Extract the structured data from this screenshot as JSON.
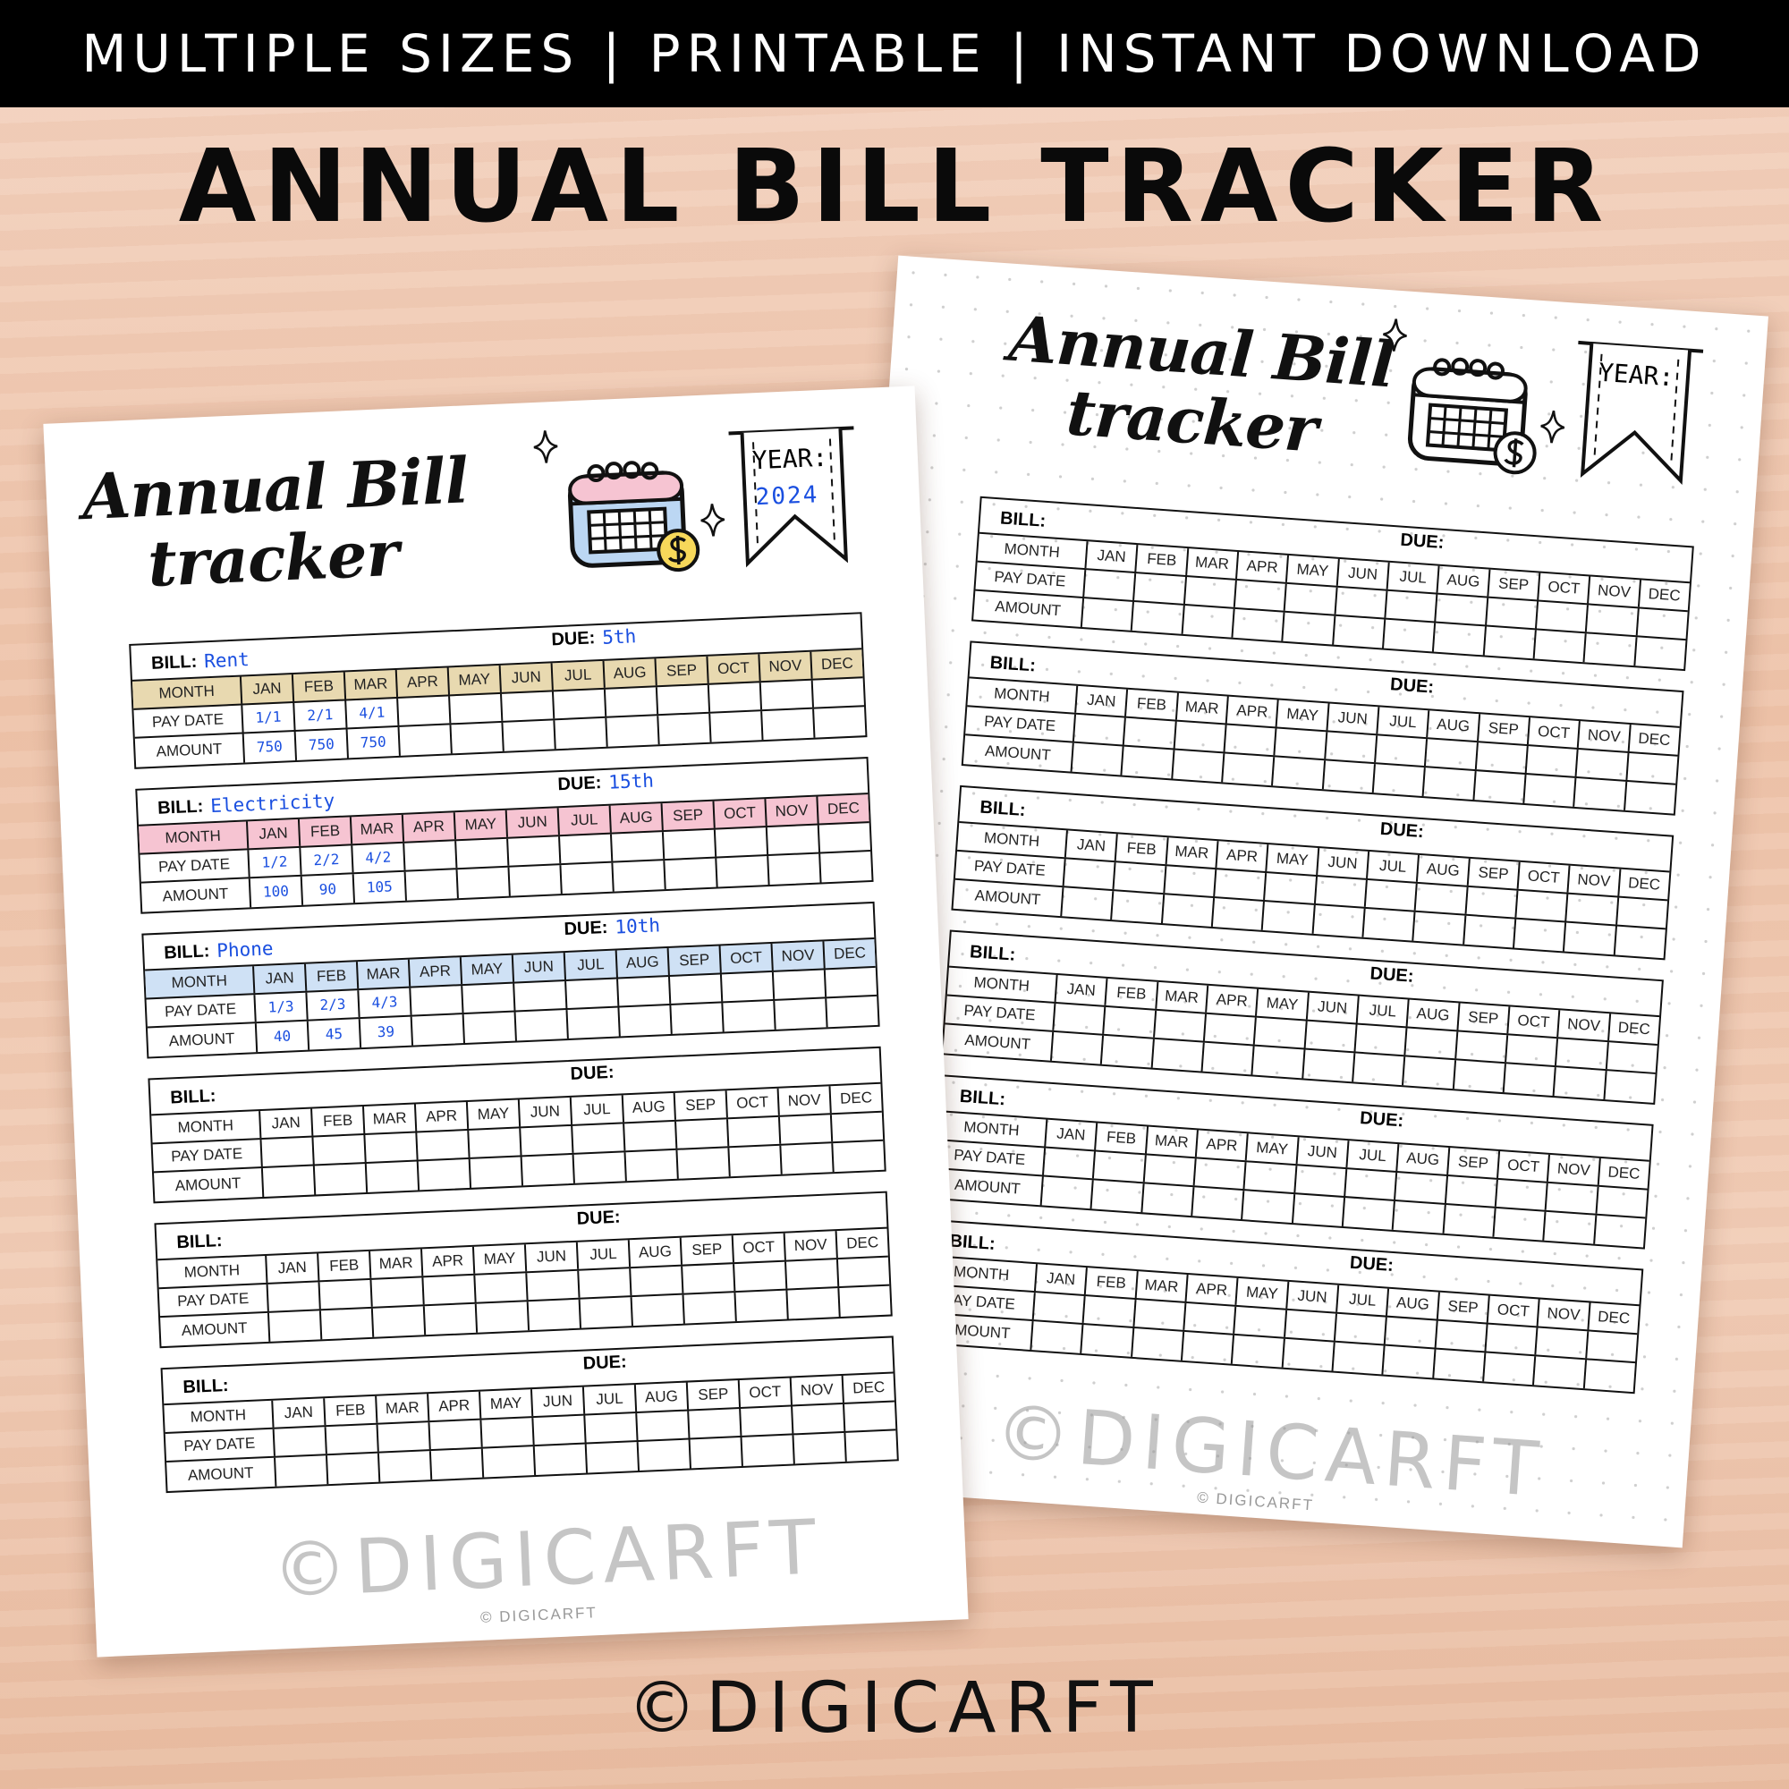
{
  "banner": "MULTIPLE SIZES | PRINTABLE | INSTANT DOWNLOAD",
  "title": "ANNUAL BILL TRACKER",
  "brand": "©DIGICARFT",
  "watermark": "©DIGICARFT",
  "watermark_small": "© DIGICARFT",
  "colors": {
    "accent_text": "#1a4fe0",
    "rent": "#e8d9b0",
    "electricity": "#f6c4d2",
    "phone": "#cfe1f5",
    "background": "#f0c8b0"
  },
  "icons": [
    "calendar-icon",
    "dollar-coin-icon",
    "sparkle-icon",
    "year-flag-icon"
  ],
  "labels": {
    "bill": "BILL:",
    "due": "DUE:",
    "month": "MONTH",
    "pay_date": "PAY DATE",
    "amount": "AMOUNT",
    "year": "YEAR:"
  },
  "months": [
    "JAN",
    "FEB",
    "MAR",
    "APR",
    "MAY",
    "JUN",
    "JUL",
    "AUG",
    "SEP",
    "OCT",
    "NOV",
    "DEC"
  ],
  "left_page": {
    "title_line1": "Annual Bill",
    "title_line2": "tracker",
    "year": "2024",
    "bills": [
      {
        "bill": "Rent",
        "due": "5th",
        "color": "#e8d9b0",
        "pay_dates": [
          "1/1",
          "2/1",
          "4/1"
        ],
        "amounts": [
          "750",
          "750",
          "750"
        ]
      },
      {
        "bill": "Electricity",
        "due": "15th",
        "color": "#f6c4d2",
        "pay_dates": [
          "1/2",
          "2/2",
          "4/2"
        ],
        "amounts": [
          "100",
          "90",
          "105"
        ]
      },
      {
        "bill": "Phone",
        "due": "10th",
        "color": "#cfe1f5",
        "pay_dates": [
          "1/3",
          "2/3",
          "4/3"
        ],
        "amounts": [
          "40",
          "45",
          "39"
        ]
      },
      {
        "bill": "",
        "due": "",
        "color": "",
        "pay_dates": [],
        "amounts": []
      },
      {
        "bill": "",
        "due": "",
        "color": "",
        "pay_dates": [],
        "amounts": []
      },
      {
        "bill": "",
        "due": "",
        "color": "",
        "pay_dates": [],
        "amounts": []
      }
    ]
  },
  "right_page": {
    "title_line1": "Annual Bill",
    "title_line2": "tracker",
    "year": "",
    "bills": [
      {
        "bill": "",
        "due": "",
        "color": "",
        "pay_dates": [],
        "amounts": []
      },
      {
        "bill": "",
        "due": "",
        "color": "",
        "pay_dates": [],
        "amounts": []
      },
      {
        "bill": "",
        "due": "",
        "color": "",
        "pay_dates": [],
        "amounts": []
      },
      {
        "bill": "",
        "due": "",
        "color": "",
        "pay_dates": [],
        "amounts": []
      },
      {
        "bill": "",
        "due": "",
        "color": "",
        "pay_dates": [],
        "amounts": []
      },
      {
        "bill": "",
        "due": "",
        "color": "",
        "pay_dates": [],
        "amounts": []
      }
    ]
  }
}
